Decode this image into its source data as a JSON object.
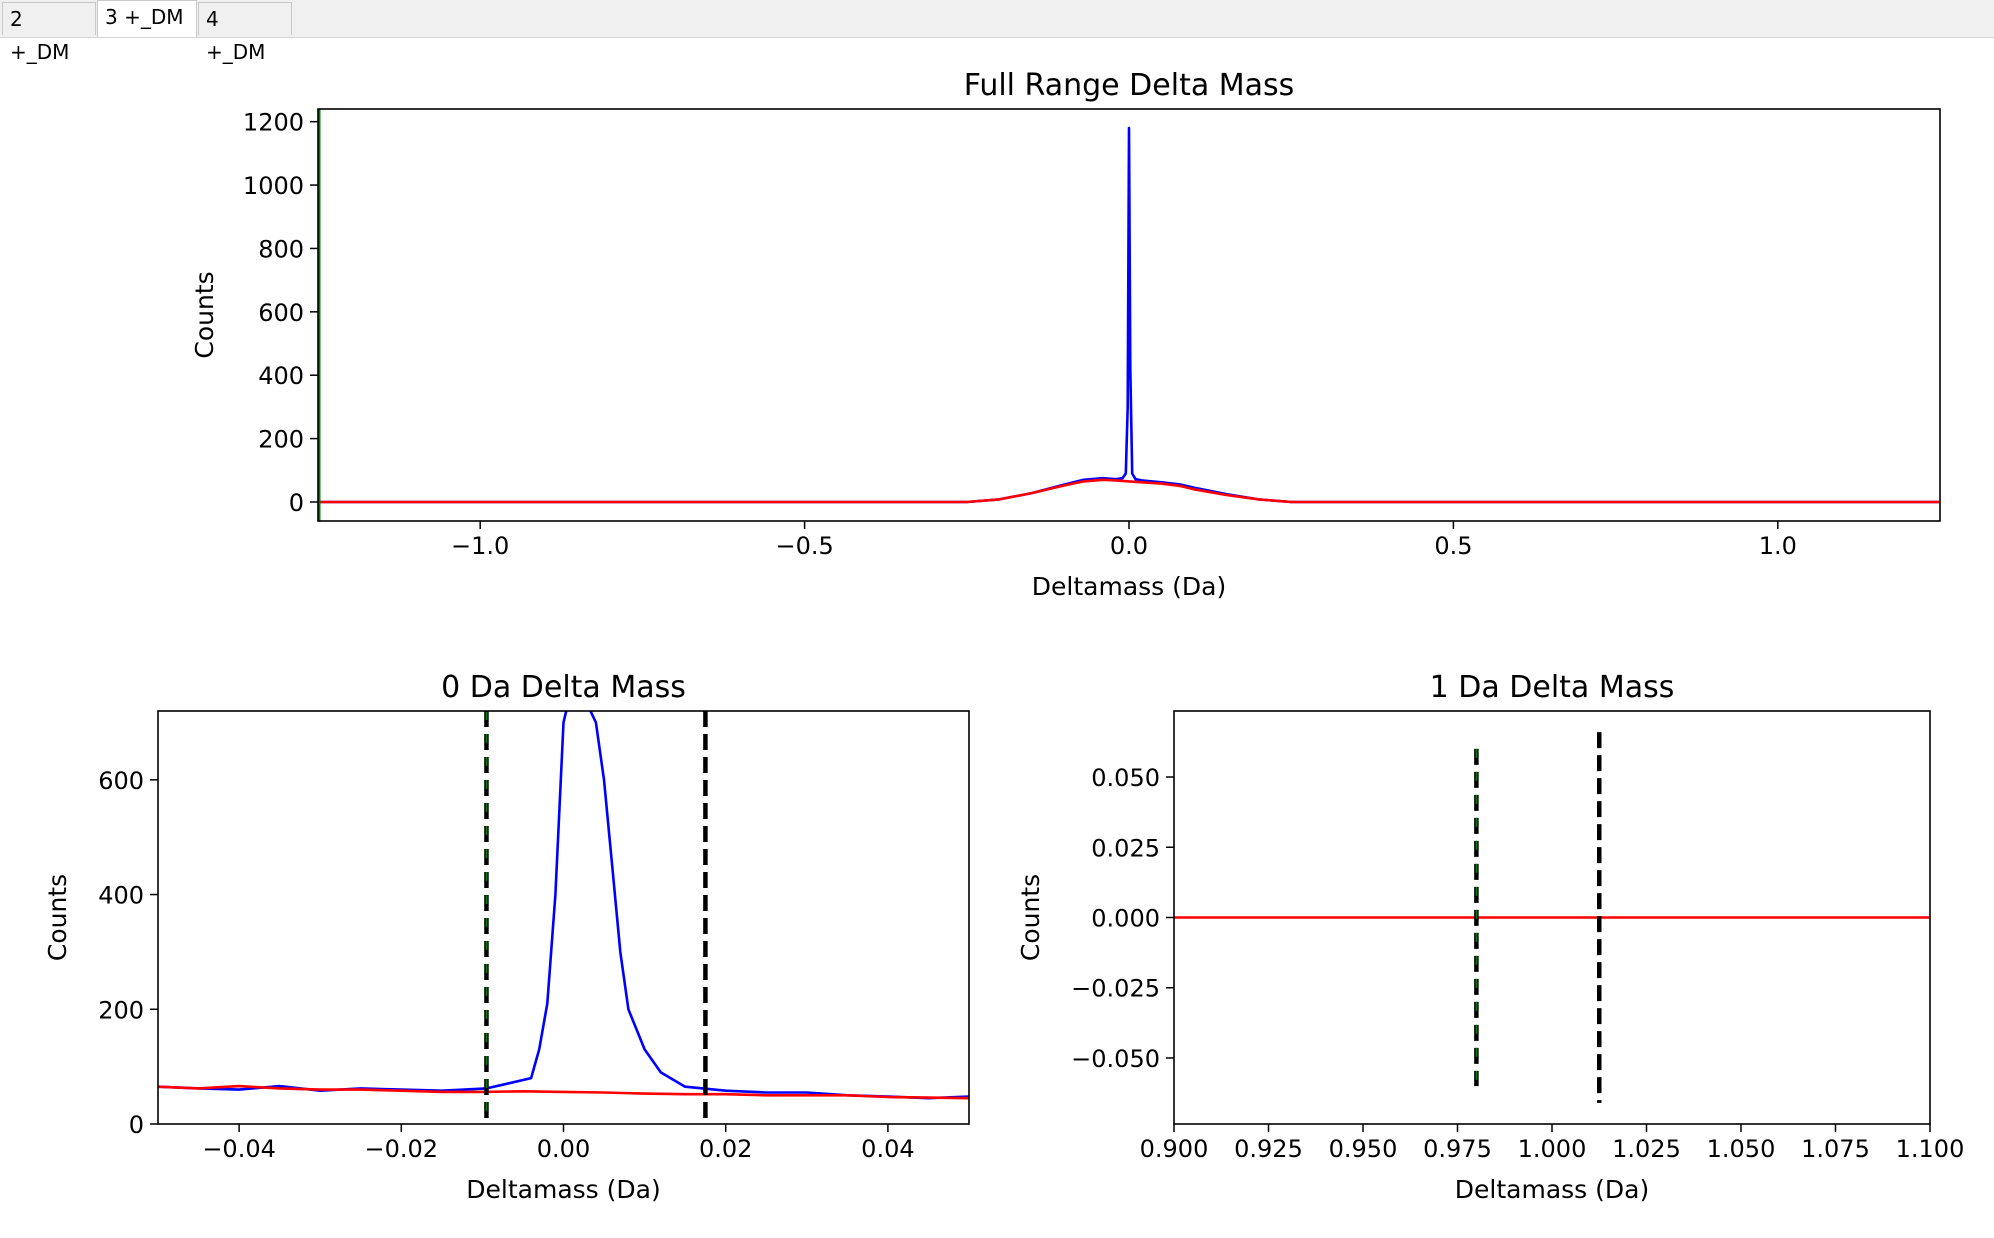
{
  "tabs": [
    {
      "label": "2 +_DM",
      "active": false
    },
    {
      "label": "3 +_DM",
      "active": true
    },
    {
      "label": "4 +_DM",
      "active": false
    }
  ],
  "colors": {
    "blue": "#0000ff",
    "red": "#ff0000",
    "black": "#000000",
    "green": "#008000"
  },
  "chart_data": [
    {
      "type": "line",
      "title": "Full Range Delta Mass",
      "xlabel": "Deltamass (Da)",
      "ylabel": "Counts",
      "xlim": [
        -1.25,
        1.25
      ],
      "ylim": [
        -60,
        1240
      ],
      "xticks": [
        -1.0,
        -0.5,
        0.0,
        0.5,
        1.0
      ],
      "xtick_labels": [
        "−1.0",
        "−0.5",
        "0.0",
        "0.5",
        "1.0"
      ],
      "yticks": [
        0,
        200,
        400,
        600,
        800,
        1000,
        1200
      ],
      "ytick_labels": [
        "0",
        "200",
        "400",
        "600",
        "800",
        "1000",
        "1200"
      ],
      "series": [
        {
          "color": "#0000ff",
          "x": [
            -1.25,
            -0.25,
            -0.2,
            -0.15,
            -0.1,
            -0.07,
            -0.04,
            -0.02,
            -0.01,
            -0.005,
            -0.002,
            0.0,
            0.002,
            0.005,
            0.01,
            0.02,
            0.05,
            0.08,
            0.1,
            0.15,
            0.2,
            0.25,
            1.25
          ],
          "y": [
            0,
            0,
            8,
            28,
            55,
            70,
            75,
            72,
            75,
            90,
            300,
            1180,
            420,
            90,
            72,
            68,
            62,
            55,
            45,
            25,
            8,
            0,
            0
          ]
        },
        {
          "color": "#ff0000",
          "x": [
            -1.25,
            -0.25,
            -0.2,
            -0.15,
            -0.1,
            -0.07,
            -0.04,
            -0.02,
            0.0,
            0.02,
            0.05,
            0.08,
            0.1,
            0.15,
            0.2,
            0.25,
            1.25
          ],
          "y": [
            0,
            0,
            8,
            28,
            52,
            65,
            70,
            68,
            65,
            62,
            58,
            50,
            40,
            22,
            8,
            0,
            0
          ]
        }
      ],
      "vlines": [
        {
          "x": -1.25,
          "color": "#008000",
          "style": "solid"
        }
      ]
    },
    {
      "type": "line",
      "title": "0 Da Delta Mass",
      "xlabel": "Deltamass (Da)",
      "ylabel": "Counts",
      "xlim": [
        -0.05,
        0.05
      ],
      "ylim": [
        0,
        720
      ],
      "xticks": [
        -0.04,
        -0.02,
        0.0,
        0.02,
        0.04
      ],
      "xtick_labels": [
        "−0.04",
        "−0.02",
        "0.00",
        "0.02",
        "0.04"
      ],
      "yticks": [
        0,
        200,
        400,
        600
      ],
      "ytick_labels": [
        "0",
        "200",
        "400",
        "600"
      ],
      "series": [
        {
          "color": "#0000ff",
          "x": [
            -0.05,
            -0.045,
            -0.04,
            -0.035,
            -0.03,
            -0.025,
            -0.02,
            -0.015,
            -0.0095,
            -0.007,
            -0.004,
            -0.003,
            -0.002,
            -0.001,
            0.0,
            0.001,
            0.002,
            0.004,
            0.005,
            0.006,
            0.007,
            0.008,
            0.01,
            0.012,
            0.015,
            0.02,
            0.025,
            0.03,
            0.035,
            0.04,
            0.045,
            0.05
          ],
          "y": [
            65,
            62,
            60,
            66,
            58,
            62,
            60,
            58,
            62,
            70,
            80,
            130,
            210,
            400,
            700,
            760,
            760,
            700,
            600,
            450,
            300,
            200,
            130,
            90,
            65,
            58,
            55,
            55,
            50,
            48,
            45,
            48
          ]
        },
        {
          "color": "#ff0000",
          "x": [
            -0.05,
            -0.045,
            -0.04,
            -0.035,
            -0.03,
            -0.025,
            -0.02,
            -0.015,
            -0.01,
            -0.005,
            0.0,
            0.005,
            0.01,
            0.015,
            0.02,
            0.025,
            0.03,
            0.035,
            0.04,
            0.045,
            0.05
          ],
          "y": [
            65,
            62,
            66,
            62,
            60,
            60,
            58,
            56,
            56,
            57,
            56,
            55,
            53,
            52,
            52,
            50,
            50,
            50,
            47,
            46,
            45
          ]
        }
      ],
      "vlines": [
        {
          "x": -0.0095,
          "color": "#000000",
          "style": "dashed",
          "overlay": "#008000"
        },
        {
          "x": 0.0175,
          "color": "#000000",
          "style": "dashed"
        }
      ]
    },
    {
      "type": "line",
      "title": "1 Da Delta Mass",
      "xlabel": "Deltamass (Da)",
      "ylabel": "Counts",
      "xlim": [
        0.9,
        1.1
      ],
      "ylim": [
        -0.0735,
        0.0735
      ],
      "xticks": [
        0.9,
        0.925,
        0.95,
        0.975,
        1.0,
        1.025,
        1.05,
        1.075,
        1.1
      ],
      "xtick_labels": [
        "0.900",
        "0.925",
        "0.950",
        "0.975",
        "1.000",
        "1.025",
        "1.050",
        "1.075",
        "1.100"
      ],
      "yticks": [
        -0.05,
        -0.025,
        0.0,
        0.025,
        0.05
      ],
      "ytick_labels": [
        "−0.050",
        "−0.025",
        "0.000",
        "0.025",
        "0.050"
      ],
      "series": [
        {
          "color": "#ff0000",
          "x": [
            0.9,
            1.1
          ],
          "y": [
            0,
            0
          ]
        }
      ],
      "vlines": [
        {
          "x": 0.98,
          "color": "#000000",
          "style": "dashed",
          "overlay": "#008000",
          "ymin": -0.06,
          "ymax": 0.06
        },
        {
          "x": 1.0125,
          "color": "#000000",
          "style": "dashed",
          "ymin": -0.066,
          "ymax": 0.066
        }
      ]
    }
  ]
}
